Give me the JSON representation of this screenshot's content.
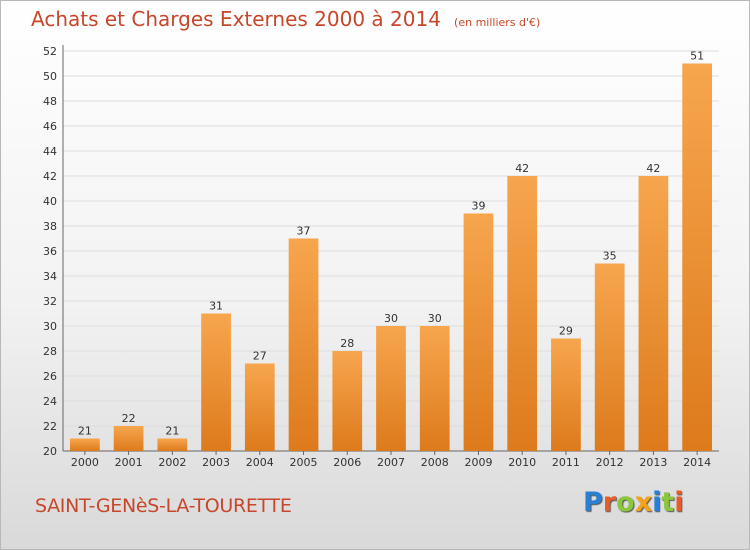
{
  "header": {
    "title": "Achats et Charges Externes 2000 à 2014",
    "unit": "(en milliers d'€)"
  },
  "footer": {
    "commune": "SAINT-GENèS-LA-TOURETTE",
    "logo": "Proxiti"
  },
  "colors": {
    "bar_light": "#f7a64e",
    "bar_dark": "#dd7a1c",
    "title": "#c8462a",
    "grid": "#dddddd"
  },
  "chart_data": {
    "type": "bar",
    "title": "Achats et Charges Externes 2000 à 2014",
    "categories": [
      "2000",
      "2001",
      "2002",
      "2003",
      "2004",
      "2005",
      "2006",
      "2007",
      "2008",
      "2009",
      "2010",
      "2011",
      "2012",
      "2013",
      "2014"
    ],
    "values": [
      21,
      22,
      21,
      31,
      27,
      37,
      28,
      30,
      30,
      39,
      42,
      29,
      35,
      42,
      51
    ],
    "ylim": [
      20,
      52
    ],
    "yticks": [
      20,
      22,
      24,
      26,
      28,
      30,
      32,
      34,
      36,
      38,
      40,
      42,
      44,
      46,
      48,
      50,
      52
    ],
    "grid": true,
    "data_labels": true
  }
}
